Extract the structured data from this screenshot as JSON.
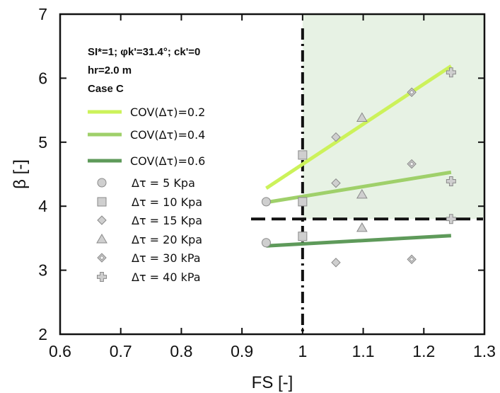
{
  "chart_data": {
    "type": "scatter",
    "xlabel": "FS [-]",
    "ylabel": "β [-]",
    "xlim": [
      0.6,
      1.3
    ],
    "ylim": [
      2,
      7
    ],
    "xticks": [
      "0.6",
      "0.7",
      "0.8",
      "0.9",
      "1",
      "1.1",
      "1.2",
      "1.3"
    ],
    "yticks": [
      "2",
      "3",
      "4",
      "5",
      "6",
      "7"
    ],
    "info_lines": {
      "line1": "SI*=1; φk'=31.4°; ck'=0",
      "line2": "hr=2.0 m",
      "line3": "Case C"
    },
    "threshold_lines": {
      "fs": 1.0,
      "beta": 3.8
    },
    "safe_region": {
      "x": [
        1.0,
        1.3
      ],
      "y": [
        3.8,
        7
      ]
    },
    "trend_lines": [
      {
        "name": "COV(Δτ)=0.2",
        "color": "#ccf25a",
        "x": [
          0.94,
          1.245
        ],
        "y": [
          4.28,
          6.19
        ]
      },
      {
        "name": "COV(Δτ)=0.4",
        "color": "#9fd06a",
        "x": [
          0.94,
          1.245
        ],
        "y": [
          4.06,
          4.53
        ]
      },
      {
        "name": "COV(Δτ)=0.6",
        "color": "#5e9a5a",
        "x": [
          0.94,
          1.245
        ],
        "y": [
          3.38,
          3.54
        ]
      }
    ],
    "series": [
      {
        "name": "Δτ = 5 Kpa",
        "marker": "circle",
        "x": [
          0.94,
          0.94
        ],
        "y": [
          4.07,
          3.43
        ]
      },
      {
        "name": "Δτ = 10 Kpa",
        "marker": "square",
        "x": [
          1.0,
          1.0,
          1.0
        ],
        "y": [
          4.8,
          4.07,
          3.53
        ]
      },
      {
        "name": "Δτ = 15 Kpa",
        "marker": "diamond",
        "x": [
          1.055,
          1.055,
          1.055
        ],
        "y": [
          5.08,
          4.36,
          3.12
        ]
      },
      {
        "name": "Δτ = 20 Kpa",
        "marker": "triangle",
        "x": [
          1.098,
          1.098,
          1.098
        ],
        "y": [
          5.38,
          4.18,
          3.66
        ]
      },
      {
        "name": "Δτ = 30 kPa",
        "marker": "diamond-dot",
        "x": [
          1.18,
          1.18,
          1.18
        ],
        "y": [
          5.78,
          4.66,
          3.17
        ]
      },
      {
        "name": "Δτ = 40 kPa",
        "marker": "plus",
        "x": [
          1.245,
          1.245,
          1.245
        ],
        "y": [
          6.09,
          4.39,
          3.8
        ]
      }
    ]
  }
}
